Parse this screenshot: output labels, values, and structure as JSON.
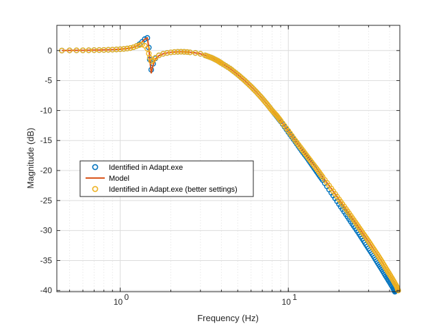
{
  "chart_data": {
    "type": "line",
    "title": "",
    "xlabel": "Frequency (Hz)",
    "ylabel": "Magnitude (dB)",
    "xscale": "log",
    "xlim": [
      0.42,
      46
    ],
    "ylim": [
      -40.2,
      4.2
    ],
    "xticks": [
      {
        "value": 1,
        "label": "10",
        "exponent": "0"
      },
      {
        "value": 10,
        "label": "10",
        "exponent": "1"
      }
    ],
    "yticks": [
      0,
      -5,
      -10,
      -15,
      -20,
      -25,
      -30,
      -35,
      -40
    ],
    "grid": true,
    "minor_grid_x": true,
    "legend_position": "center-left",
    "series": [
      {
        "name": "Identified in Adapt.exe",
        "style": "markers",
        "marker": "circle",
        "color": "#0072BD",
        "points": [
          [
            0.45,
            0.0
          ],
          [
            0.5,
            0.02
          ],
          [
            0.55,
            0.03
          ],
          [
            0.6,
            0.04
          ],
          [
            0.65,
            0.05
          ],
          [
            0.7,
            0.07
          ],
          [
            0.75,
            0.08
          ],
          [
            0.8,
            0.1
          ],
          [
            0.85,
            0.12
          ],
          [
            0.9,
            0.15
          ],
          [
            0.95,
            0.18
          ],
          [
            1.0,
            0.22
          ],
          [
            1.05,
            0.27
          ],
          [
            1.1,
            0.33
          ],
          [
            1.15,
            0.42
          ],
          [
            1.2,
            0.55
          ],
          [
            1.25,
            0.75
          ],
          [
            1.3,
            1.05
          ],
          [
            1.35,
            1.45
          ],
          [
            1.4,
            1.9
          ],
          [
            1.45,
            2.1
          ],
          [
            1.48,
            0.5
          ],
          [
            1.5,
            -1.5
          ],
          [
            1.53,
            -3.2
          ],
          [
            1.57,
            -2.2
          ],
          [
            1.62,
            -1.3
          ],
          [
            1.7,
            -0.8
          ],
          [
            1.8,
            -0.55
          ],
          [
            1.9,
            -0.4
          ],
          [
            2.0,
            -0.3
          ],
          [
            2.1,
            -0.25
          ],
          [
            2.2,
            -0.22
          ],
          [
            2.3,
            -0.2
          ],
          [
            2.4,
            -0.22
          ],
          [
            2.5,
            -0.25
          ],
          [
            2.6,
            -0.3
          ],
          [
            2.8,
            -0.4
          ],
          [
            3.0,
            -0.55
          ],
          [
            3.2,
            -0.8
          ],
          [
            3.5,
            -1.2
          ],
          [
            3.8,
            -1.7
          ],
          [
            4.0,
            -2.1
          ],
          [
            4.5,
            -3.0
          ],
          [
            5.0,
            -4.0
          ],
          [
            5.5,
            -5.0
          ],
          [
            6.0,
            -6.0
          ],
          [
            6.5,
            -7.0
          ],
          [
            7.0,
            -8.0
          ],
          [
            7.5,
            -9.0
          ],
          [
            8.0,
            -10.0
          ],
          [
            8.5,
            -10.9
          ],
          [
            9.0,
            -11.8
          ],
          [
            10.0,
            -13.6
          ],
          [
            11.0,
            -15.2
          ],
          [
            12.0,
            -16.7
          ],
          [
            13.0,
            -18.0
          ],
          [
            14.0,
            -19.3
          ],
          [
            15.0,
            -20.5
          ],
          [
            16.0,
            -21.6
          ],
          [
            18.0,
            -23.7
          ],
          [
            20.0,
            -25.6
          ],
          [
            22.0,
            -27.3
          ],
          [
            24.0,
            -28.9
          ],
          [
            26.0,
            -30.3
          ],
          [
            28.0,
            -31.7
          ],
          [
            30.0,
            -33.0
          ],
          [
            32.0,
            -34.2
          ],
          [
            34.0,
            -35.4
          ],
          [
            36.0,
            -36.5
          ],
          [
            38.0,
            -37.6
          ],
          [
            40.0,
            -38.6
          ],
          [
            42.0,
            -39.6
          ],
          [
            43.0,
            -40.2
          ]
        ]
      },
      {
        "name": "Model",
        "style": "line",
        "color": "#D95319",
        "points": [
          [
            0.45,
            0.0
          ],
          [
            0.5,
            0.02
          ],
          [
            0.55,
            0.03
          ],
          [
            0.6,
            0.04
          ],
          [
            0.65,
            0.05
          ],
          [
            0.7,
            0.07
          ],
          [
            0.75,
            0.08
          ],
          [
            0.8,
            0.1
          ],
          [
            0.85,
            0.12
          ],
          [
            0.9,
            0.15
          ],
          [
            0.95,
            0.18
          ],
          [
            1.0,
            0.22
          ],
          [
            1.05,
            0.27
          ],
          [
            1.1,
            0.33
          ],
          [
            1.15,
            0.42
          ],
          [
            1.2,
            0.55
          ],
          [
            1.25,
            0.75
          ],
          [
            1.3,
            1.05
          ],
          [
            1.35,
            1.45
          ],
          [
            1.4,
            1.9
          ],
          [
            1.45,
            2.1
          ],
          [
            1.48,
            0.5
          ],
          [
            1.5,
            -1.5
          ],
          [
            1.53,
            -3.8
          ],
          [
            1.57,
            -2.4
          ],
          [
            1.62,
            -1.4
          ],
          [
            1.7,
            -0.85
          ],
          [
            1.8,
            -0.55
          ],
          [
            1.9,
            -0.4
          ],
          [
            2.0,
            -0.3
          ],
          [
            2.1,
            -0.25
          ],
          [
            2.2,
            -0.22
          ],
          [
            2.3,
            -0.2
          ],
          [
            2.4,
            -0.22
          ],
          [
            2.5,
            -0.25
          ],
          [
            2.6,
            -0.3
          ],
          [
            2.8,
            -0.4
          ],
          [
            3.0,
            -0.55
          ],
          [
            3.2,
            -0.8
          ],
          [
            3.5,
            -1.2
          ],
          [
            3.8,
            -1.7
          ],
          [
            4.0,
            -2.1
          ],
          [
            4.5,
            -3.0
          ],
          [
            5.0,
            -4.0
          ],
          [
            5.5,
            -5.0
          ],
          [
            6.0,
            -6.0
          ],
          [
            6.5,
            -7.0
          ],
          [
            7.0,
            -8.0
          ],
          [
            7.5,
            -9.0
          ],
          [
            8.0,
            -10.0
          ],
          [
            8.5,
            -10.8
          ],
          [
            9.0,
            -11.7
          ],
          [
            10.0,
            -13.4
          ],
          [
            11.0,
            -15.0
          ],
          [
            12.0,
            -16.4
          ],
          [
            13.0,
            -17.7
          ],
          [
            14.0,
            -18.9
          ],
          [
            15.0,
            -20.0
          ],
          [
            16.0,
            -21.1
          ],
          [
            18.0,
            -23.0
          ],
          [
            20.0,
            -24.8
          ],
          [
            22.0,
            -26.4
          ],
          [
            24.0,
            -27.9
          ],
          [
            26.0,
            -29.3
          ],
          [
            28.0,
            -30.6
          ],
          [
            30.0,
            -31.8
          ],
          [
            32.0,
            -33.0
          ],
          [
            34.0,
            -34.1
          ],
          [
            36.0,
            -35.2
          ],
          [
            38.0,
            -36.3
          ],
          [
            40.0,
            -37.3
          ],
          [
            42.0,
            -38.3
          ],
          [
            44.0,
            -39.3
          ],
          [
            45.0,
            -40.0
          ]
        ]
      },
      {
        "name": "Identified in Adapt.exe (better settings)",
        "style": "markers",
        "marker": "circle",
        "color": "#EDB120",
        "points": [
          [
            0.45,
            0.0
          ],
          [
            0.5,
            0.02
          ],
          [
            0.55,
            0.03
          ],
          [
            0.6,
            0.04
          ],
          [
            0.65,
            0.05
          ],
          [
            0.7,
            0.07
          ],
          [
            0.75,
            0.08
          ],
          [
            0.8,
            0.1
          ],
          [
            0.85,
            0.12
          ],
          [
            0.9,
            0.15
          ],
          [
            0.95,
            0.18
          ],
          [
            1.0,
            0.22
          ],
          [
            1.05,
            0.27
          ],
          [
            1.1,
            0.33
          ],
          [
            1.15,
            0.42
          ],
          [
            1.2,
            0.55
          ],
          [
            1.25,
            0.75
          ],
          [
            1.3,
            0.9
          ],
          [
            1.35,
            1.0
          ],
          [
            1.4,
            0.8
          ],
          [
            1.45,
            0.3
          ],
          [
            1.48,
            -0.5
          ],
          [
            1.5,
            -1.2
          ],
          [
            1.53,
            -1.8
          ],
          [
            1.57,
            -1.6
          ],
          [
            1.62,
            -1.2
          ],
          [
            1.7,
            -0.8
          ],
          [
            1.8,
            -0.55
          ],
          [
            1.9,
            -0.4
          ],
          [
            2.0,
            -0.3
          ],
          [
            2.1,
            -0.25
          ],
          [
            2.2,
            -0.22
          ],
          [
            2.3,
            -0.2
          ],
          [
            2.4,
            -0.22
          ],
          [
            2.5,
            -0.25
          ],
          [
            2.6,
            -0.3
          ],
          [
            2.8,
            -0.4
          ],
          [
            3.0,
            -0.55
          ],
          [
            3.2,
            -0.8
          ],
          [
            3.5,
            -1.2
          ],
          [
            3.8,
            -1.7
          ],
          [
            4.0,
            -2.1
          ],
          [
            4.5,
            -3.0
          ],
          [
            5.0,
            -4.0
          ],
          [
            5.5,
            -5.0
          ],
          [
            6.0,
            -6.0
          ],
          [
            6.5,
            -7.0
          ],
          [
            7.0,
            -8.0
          ],
          [
            7.5,
            -9.0
          ],
          [
            8.0,
            -10.0
          ],
          [
            8.5,
            -10.8
          ],
          [
            9.0,
            -11.7
          ],
          [
            10.0,
            -13.4
          ],
          [
            11.0,
            -15.0
          ],
          [
            12.0,
            -16.4
          ],
          [
            13.0,
            -17.7
          ],
          [
            14.0,
            -18.9
          ],
          [
            15.0,
            -20.0
          ],
          [
            16.0,
            -21.1
          ],
          [
            18.0,
            -23.0
          ],
          [
            20.0,
            -24.8
          ],
          [
            22.0,
            -26.4
          ],
          [
            24.0,
            -27.9
          ],
          [
            26.0,
            -29.3
          ],
          [
            28.0,
            -30.6
          ],
          [
            30.0,
            -31.8
          ],
          [
            32.0,
            -33.0
          ],
          [
            34.0,
            -34.1
          ],
          [
            36.0,
            -35.2
          ],
          [
            38.0,
            -36.3
          ],
          [
            40.0,
            -37.3
          ],
          [
            42.0,
            -38.3
          ],
          [
            44.0,
            -39.3
          ],
          [
            45.0,
            -40.0
          ]
        ]
      }
    ]
  }
}
